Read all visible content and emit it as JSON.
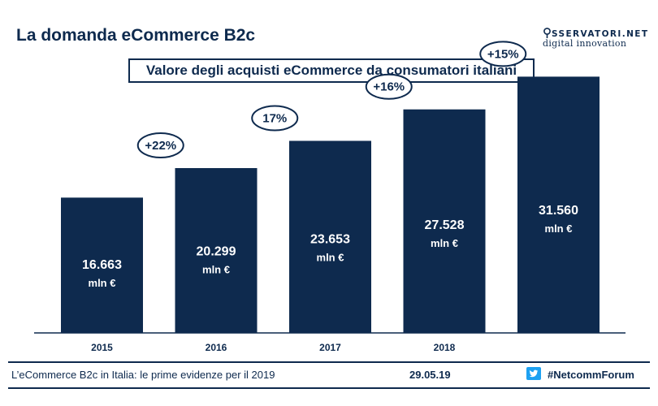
{
  "slide": {
    "title": "La domanda eCommerce B2c",
    "logo_line1": "SSERVATORI.NET",
    "logo_line2": "digital innovation"
  },
  "chart_data": {
    "type": "bar",
    "title": "Valore degli acquisti eCommerce da consumatori italiani",
    "categories": [
      "2015",
      "2016",
      "2017",
      "2018",
      ""
    ],
    "values": [
      16663,
      20299,
      23653,
      27528,
      31560
    ],
    "value_labels": [
      "16.663",
      "20.299",
      "23.653",
      "27.528",
      "31.560"
    ],
    "unit": "mln €",
    "growth_labels": [
      "+22%",
      "17%",
      "+16%",
      "+15%"
    ],
    "ylim": [
      0,
      34000
    ],
    "grid": false,
    "legend": "none",
    "colors": {
      "bar": "#0e2a4e",
      "label": "#ffffff",
      "axis": "#0e2a4e"
    }
  },
  "footer": {
    "text": "L’eCommerce B2c in Italia: le prime evidenze per il 2019",
    "date": "29.05.19",
    "hashtag": "#NetcommForum",
    "icon": "twitter-icon",
    "twitter_color": "#1da1f2"
  }
}
